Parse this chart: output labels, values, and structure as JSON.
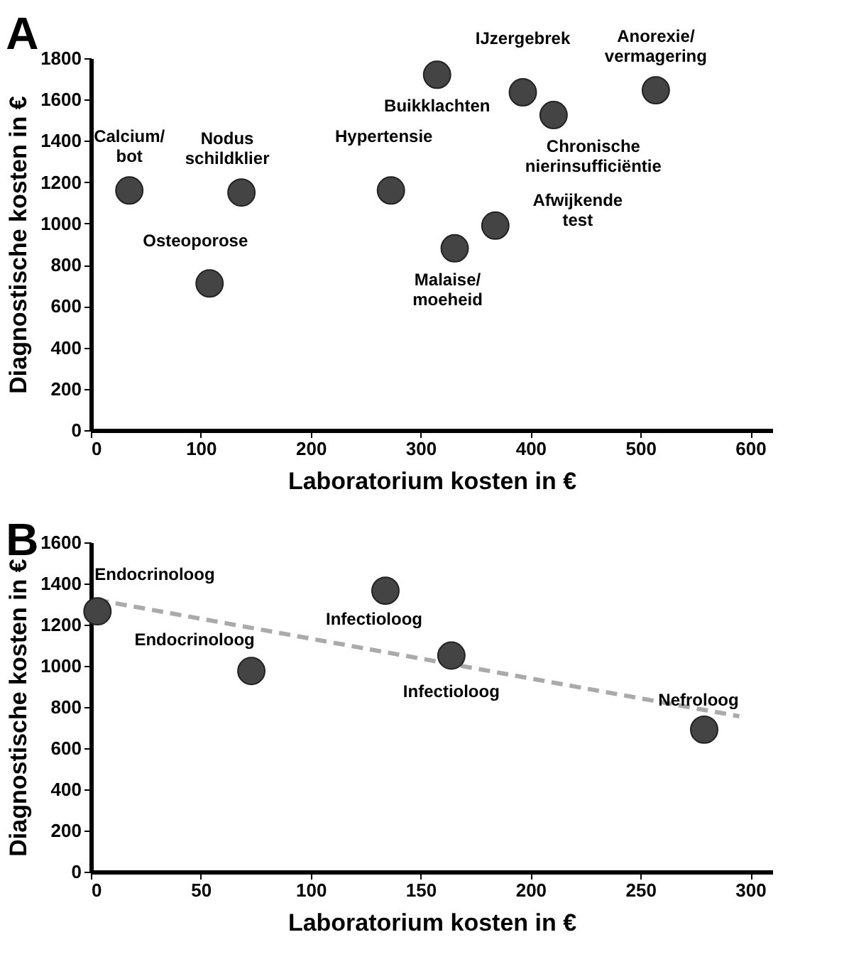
{
  "chart_data": [
    {
      "type": "scatter",
      "title": "A",
      "xlabel": "Laboratorium kosten in €",
      "ylabel": "Diagnostische kosten in €",
      "xlim": [
        0,
        620
      ],
      "ylim": [
        0,
        1800
      ],
      "xticks": [
        0,
        100,
        200,
        300,
        400,
        500,
        600
      ],
      "yticks": [
        0,
        200,
        400,
        600,
        800,
        1000,
        1200,
        1400,
        1600,
        1800
      ],
      "grid": false,
      "marker": "circle",
      "series": [
        {
          "type": "scatter",
          "color": "#444444",
          "x": [
            35,
            108,
            137,
            273,
            315,
            331,
            368,
            393,
            421,
            514
          ],
          "values": [
            1160,
            710,
            1150,
            1160,
            1720,
            880,
            990,
            1635,
            1525,
            1645
          ]
        }
      ],
      "annotations": [
        {
          "text": "Calcium/\nbot",
          "x": 35,
          "y": 1160
        },
        {
          "text": "Osteoporose",
          "x": 108,
          "y": 710
        },
        {
          "text": "Nodus\nschildklier",
          "x": 137,
          "y": 1150
        },
        {
          "text": "Hypertensie",
          "x": 273,
          "y": 1160
        },
        {
          "text": "Buikklachten",
          "x": 315,
          "y": 1720
        },
        {
          "text": "Malaise/\nmoeheid",
          "x": 331,
          "y": 880
        },
        {
          "text": "Afwijkende\ntest",
          "x": 368,
          "y": 990
        },
        {
          "text": "IJzergebrek",
          "x": 393,
          "y": 1635
        },
        {
          "text": "Chronische\nnierinsufficiëntie",
          "x": 421,
          "y": 1525
        },
        {
          "text": "Anorexie/\nvermagering",
          "x": 514,
          "y": 1645
        }
      ]
    },
    {
      "type": "scatter",
      "title": "B",
      "xlabel": "Laboratorium kosten in €",
      "ylabel": "Diagnostische kosten in €",
      "xlim": [
        0,
        310
      ],
      "ylim": [
        0,
        1600
      ],
      "xticks": [
        0,
        50,
        100,
        150,
        200,
        250,
        300
      ],
      "yticks": [
        0,
        200,
        400,
        600,
        800,
        1000,
        1200,
        1400,
        1600
      ],
      "grid": false,
      "marker": "circle",
      "series": [
        {
          "type": "line",
          "color": "#aaaaaa",
          "line_style": "dashed",
          "marker": "none",
          "x": [
            3,
            295
          ],
          "values": [
            1320,
            755
          ]
        },
        {
          "type": "scatter",
          "color": "#444444",
          "x": [
            3,
            73,
            134,
            164,
            279
          ],
          "values": [
            1265,
            975,
            1365,
            1050,
            690
          ]
        }
      ],
      "annotations": [
        {
          "text": "Endocrinoloog",
          "x": 3,
          "y": 1265
        },
        {
          "text": "Endocrinoloog",
          "x": 73,
          "y": 975
        },
        {
          "text": "Infectioloog",
          "x": 134,
          "y": 1365
        },
        {
          "text": "Infectioloog",
          "x": 164,
          "y": 1050
        },
        {
          "text": "Nefroloog",
          "x": 279,
          "y": 690
        }
      ]
    }
  ]
}
